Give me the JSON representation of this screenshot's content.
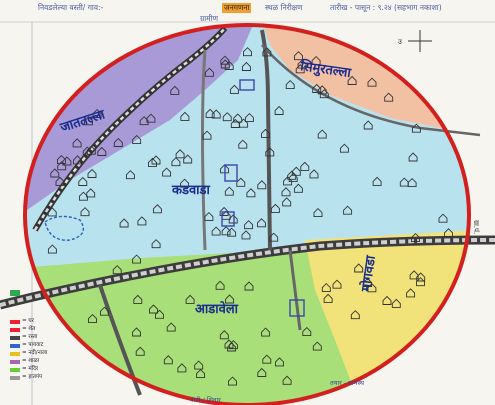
{
  "header": {
    "left": "निवडलेल्या वस्ती/ गाव:-",
    "stamp": "जनगणना",
    "mid": "स्थळ निरीक्षण",
    "right": "तारीख - पासून : ९.२४ (सहभाग नकाशा)",
    "sub": "ग्रामीण"
  },
  "compass": {
    "label": "उ"
  },
  "regions": [
    {
      "key": "nw",
      "label": "जाततल्ला",
      "color": "#a89ad6"
    },
    {
      "key": "ne",
      "label": "सिमुरतल्ला",
      "color": "#f2c0a2"
    },
    {
      "key": "center",
      "label": "कडवाडा",
      "color": "#b9e2ef"
    },
    {
      "key": "east",
      "label": "मोगवडा",
      "color": "#f1e27a"
    },
    {
      "key": "south",
      "label": "आडावेला",
      "color": "#a8df78"
    }
  ],
  "right_margin": "ग्रा.पं.",
  "legend": {
    "items": [
      "= घर",
      "= शेत",
      "= रस्ता",
      "= पायवाट",
      "= नदी/नाला",
      "= शाळा",
      "= मंदिर",
      "= हातपंप"
    ]
  },
  "footer": {
    "right": "तयार - ग्रामस्थ",
    "bottom": "वाडी / शिवार"
  }
}
